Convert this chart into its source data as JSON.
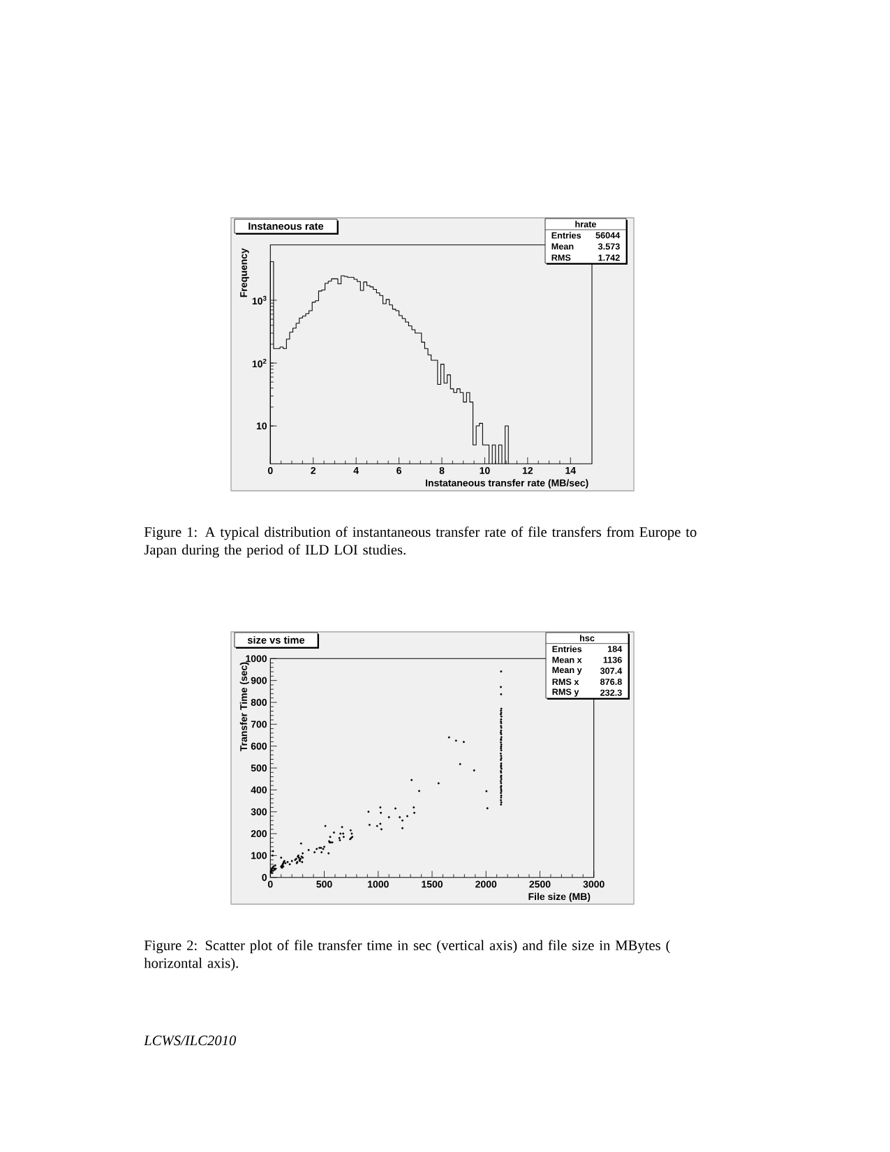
{
  "chart_data": [
    {
      "type": "histogram",
      "title": "Instaneous rate",
      "xlabel": "Instataneous transfer rate (MB/sec)",
      "ylabel": "Frequency",
      "color": "#000000",
      "log": "y",
      "xlim": [
        0,
        15
      ],
      "ylim": [
        2.5,
        7600
      ],
      "xticks": [
        0,
        2,
        4,
        6,
        8,
        10,
        12,
        14
      ],
      "yticks": [
        10,
        {
          "value": 100,
          "label": "10$^{2}$"
        },
        {
          "value": 1000,
          "label": "10$^{3}$"
        }
      ],
      "bins": [
        0,
        0.15,
        0.3,
        0.45,
        0.6,
        0.75,
        0.9,
        1.05,
        1.2,
        1.35,
        1.5,
        1.65,
        1.8,
        1.95,
        2.1,
        2.25,
        2.4,
        2.55,
        2.7,
        2.85,
        3,
        3.15,
        3.3,
        3.45,
        3.6,
        3.75,
        3.9,
        4.05,
        4.2,
        4.35,
        4.5,
        4.65,
        4.8,
        4.95,
        5.1,
        5.25,
        5.4,
        5.55,
        5.7,
        5.85,
        6,
        6.15,
        6.3,
        6.45,
        6.6,
        6.75,
        6.9,
        7.05,
        7.2,
        7.35,
        7.5,
        7.65,
        7.8,
        7.95,
        8.1,
        8.25,
        8.4,
        8.55,
        8.7,
        8.85,
        9,
        9.15,
        9.3,
        9.45,
        9.6,
        9.75,
        9.9,
        10.05,
        10.2,
        10.35,
        10.5,
        10.65,
        10.8,
        10.95,
        11.1
      ],
      "values": [
        4100,
        170,
        170,
        180,
        170,
        240,
        310,
        360,
        430,
        520,
        560,
        610,
        680,
        930,
        980,
        1400,
        1460,
        1860,
        2010,
        2190,
        2190,
        1820,
        2450,
        2390,
        2310,
        2310,
        2150,
        1980,
        1430,
        1950,
        1710,
        1630,
        1490,
        1310,
        1190,
        880,
        1030,
        840,
        720,
        680,
        570,
        510,
        450,
        390,
        340,
        300,
        300,
        215,
        170,
        135,
        111,
        111,
        46,
        96,
        48,
        65,
        39,
        34,
        39,
        34,
        24,
        34,
        24,
        5,
        10,
        11,
        5,
        5,
        null,
        5,
        null,
        5,
        null,
        10
      ],
      "annotations": [
        "hrate",
        "Entries",
        "56044",
        "Mean",
        "3.573",
        "RMS",
        "1.742",
        "Figure 1: A typical distribution of instantaneous transfer rate of file transfers from Europe to Japan during the period of ILD LOI studies."
      ]
    },
    {
      "type": "scatter",
      "title": "size vs time",
      "xlabel": "File size (MB)",
      "ylabel": "Transfer Time (sec)",
      "color": "#000000",
      "marker": "circle",
      "xlim": [
        0,
        3000
      ],
      "ylim": [
        0,
        1000
      ],
      "xticks": [
        0,
        500,
        1000,
        1500,
        2000,
        2500,
        3000
      ],
      "yticks": [
        0,
        100,
        200,
        300,
        400,
        500,
        600,
        700,
        800,
        900,
        1000
      ],
      "x": [
        5,
        10,
        15,
        20,
        25,
        30,
        20,
        25,
        35,
        40,
        45,
        50,
        10,
        15,
        100,
        100,
        105,
        110,
        115,
        120,
        125,
        130,
        140,
        160,
        180,
        200,
        110,
        120,
        230,
        240,
        250,
        255,
        260,
        265,
        270,
        280,
        290,
        300,
        295,
        285,
        245,
        275,
        300,
        355,
        410,
        430,
        455,
        470,
        475,
        490,
        500,
        510,
        540,
        545,
        550,
        555,
        560,
        575,
        590,
        640,
        645,
        650,
        665,
        675,
        680,
        740,
        745,
        750,
        755,
        760,
        910,
        920,
        990,
        1020,
        1025,
        1020,
        1030,
        1100,
        1160,
        1200,
        1225,
        1225,
        1270,
        1310,
        1330,
        1335,
        1380,
        1560,
        1657,
        1722,
        1760,
        1794,
        1890,
        2004,
        2013,
        2140,
        2138,
        2140,
        2142,
        2139,
        2141,
        2137,
        2143,
        2140,
        2138,
        2141,
        2139,
        2142,
        2140,
        2137,
        2141,
        2143,
        2139,
        2140,
        2138,
        2142,
        2140,
        2139,
        2141,
        2137,
        2140,
        2142,
        2138,
        2141,
        2140,
        2139,
        2143,
        2138,
        2140,
        2141,
        2139,
        2142,
        2137,
        2140,
        2141,
        2138,
        2140,
        2142,
        2139,
        2141,
        2140,
        2138,
        2142,
        2139
      ],
      "values": [
        25,
        35,
        40,
        45,
        30,
        50,
        100,
        120,
        40,
        35,
        55,
        40,
        30,
        20,
        50,
        90,
        45,
        55,
        60,
        50,
        70,
        75,
        65,
        70,
        60,
        75,
        45,
        65,
        80,
        85,
        70,
        95,
        100,
        90,
        80,
        85,
        95,
        110,
        70,
        155,
        65,
        75,
        90,
        125,
        115,
        130,
        135,
        135,
        115,
        130,
        140,
        235,
        110,
        165,
        160,
        185,
        160,
        160,
        205,
        180,
        170,
        200,
        230,
        200,
        185,
        175,
        215,
        180,
        200,
        185,
        300,
        240,
        235,
        320,
        295,
        245,
        220,
        275,
        315,
        275,
        225,
        260,
        280,
        445,
        320,
        295,
        395,
        430,
        640,
        625,
        518,
        619,
        489,
        394,
        316,
        941,
        870,
        837,
        771,
        762,
        752,
        745,
        735,
        722,
        712,
        705,
        692,
        684,
        671,
        662,
        655,
        641,
        632,
        628,
        617,
        607,
        598,
        590,
        581,
        566,
        555,
        545,
        537,
        521,
        512,
        505,
        497,
        486,
        479,
        465,
        458,
        449,
        440,
        431,
        418,
        412,
        403,
        395,
        386,
        374,
        365,
        353,
        343,
        333
      ],
      "annotations": [
        "hsc",
        "Entries",
        "184",
        "Mean x",
        "1136",
        "Mean y",
        "307.4",
        "RMS x",
        "876.8",
        "RMS y",
        "232.3",
        "Figure 2: Scatter plot of file transfer time in sec (vertical axis) and file size in MBytes ( horizontal axis).",
        "LCWS/ILC2010"
      ]
    }
  ]
}
